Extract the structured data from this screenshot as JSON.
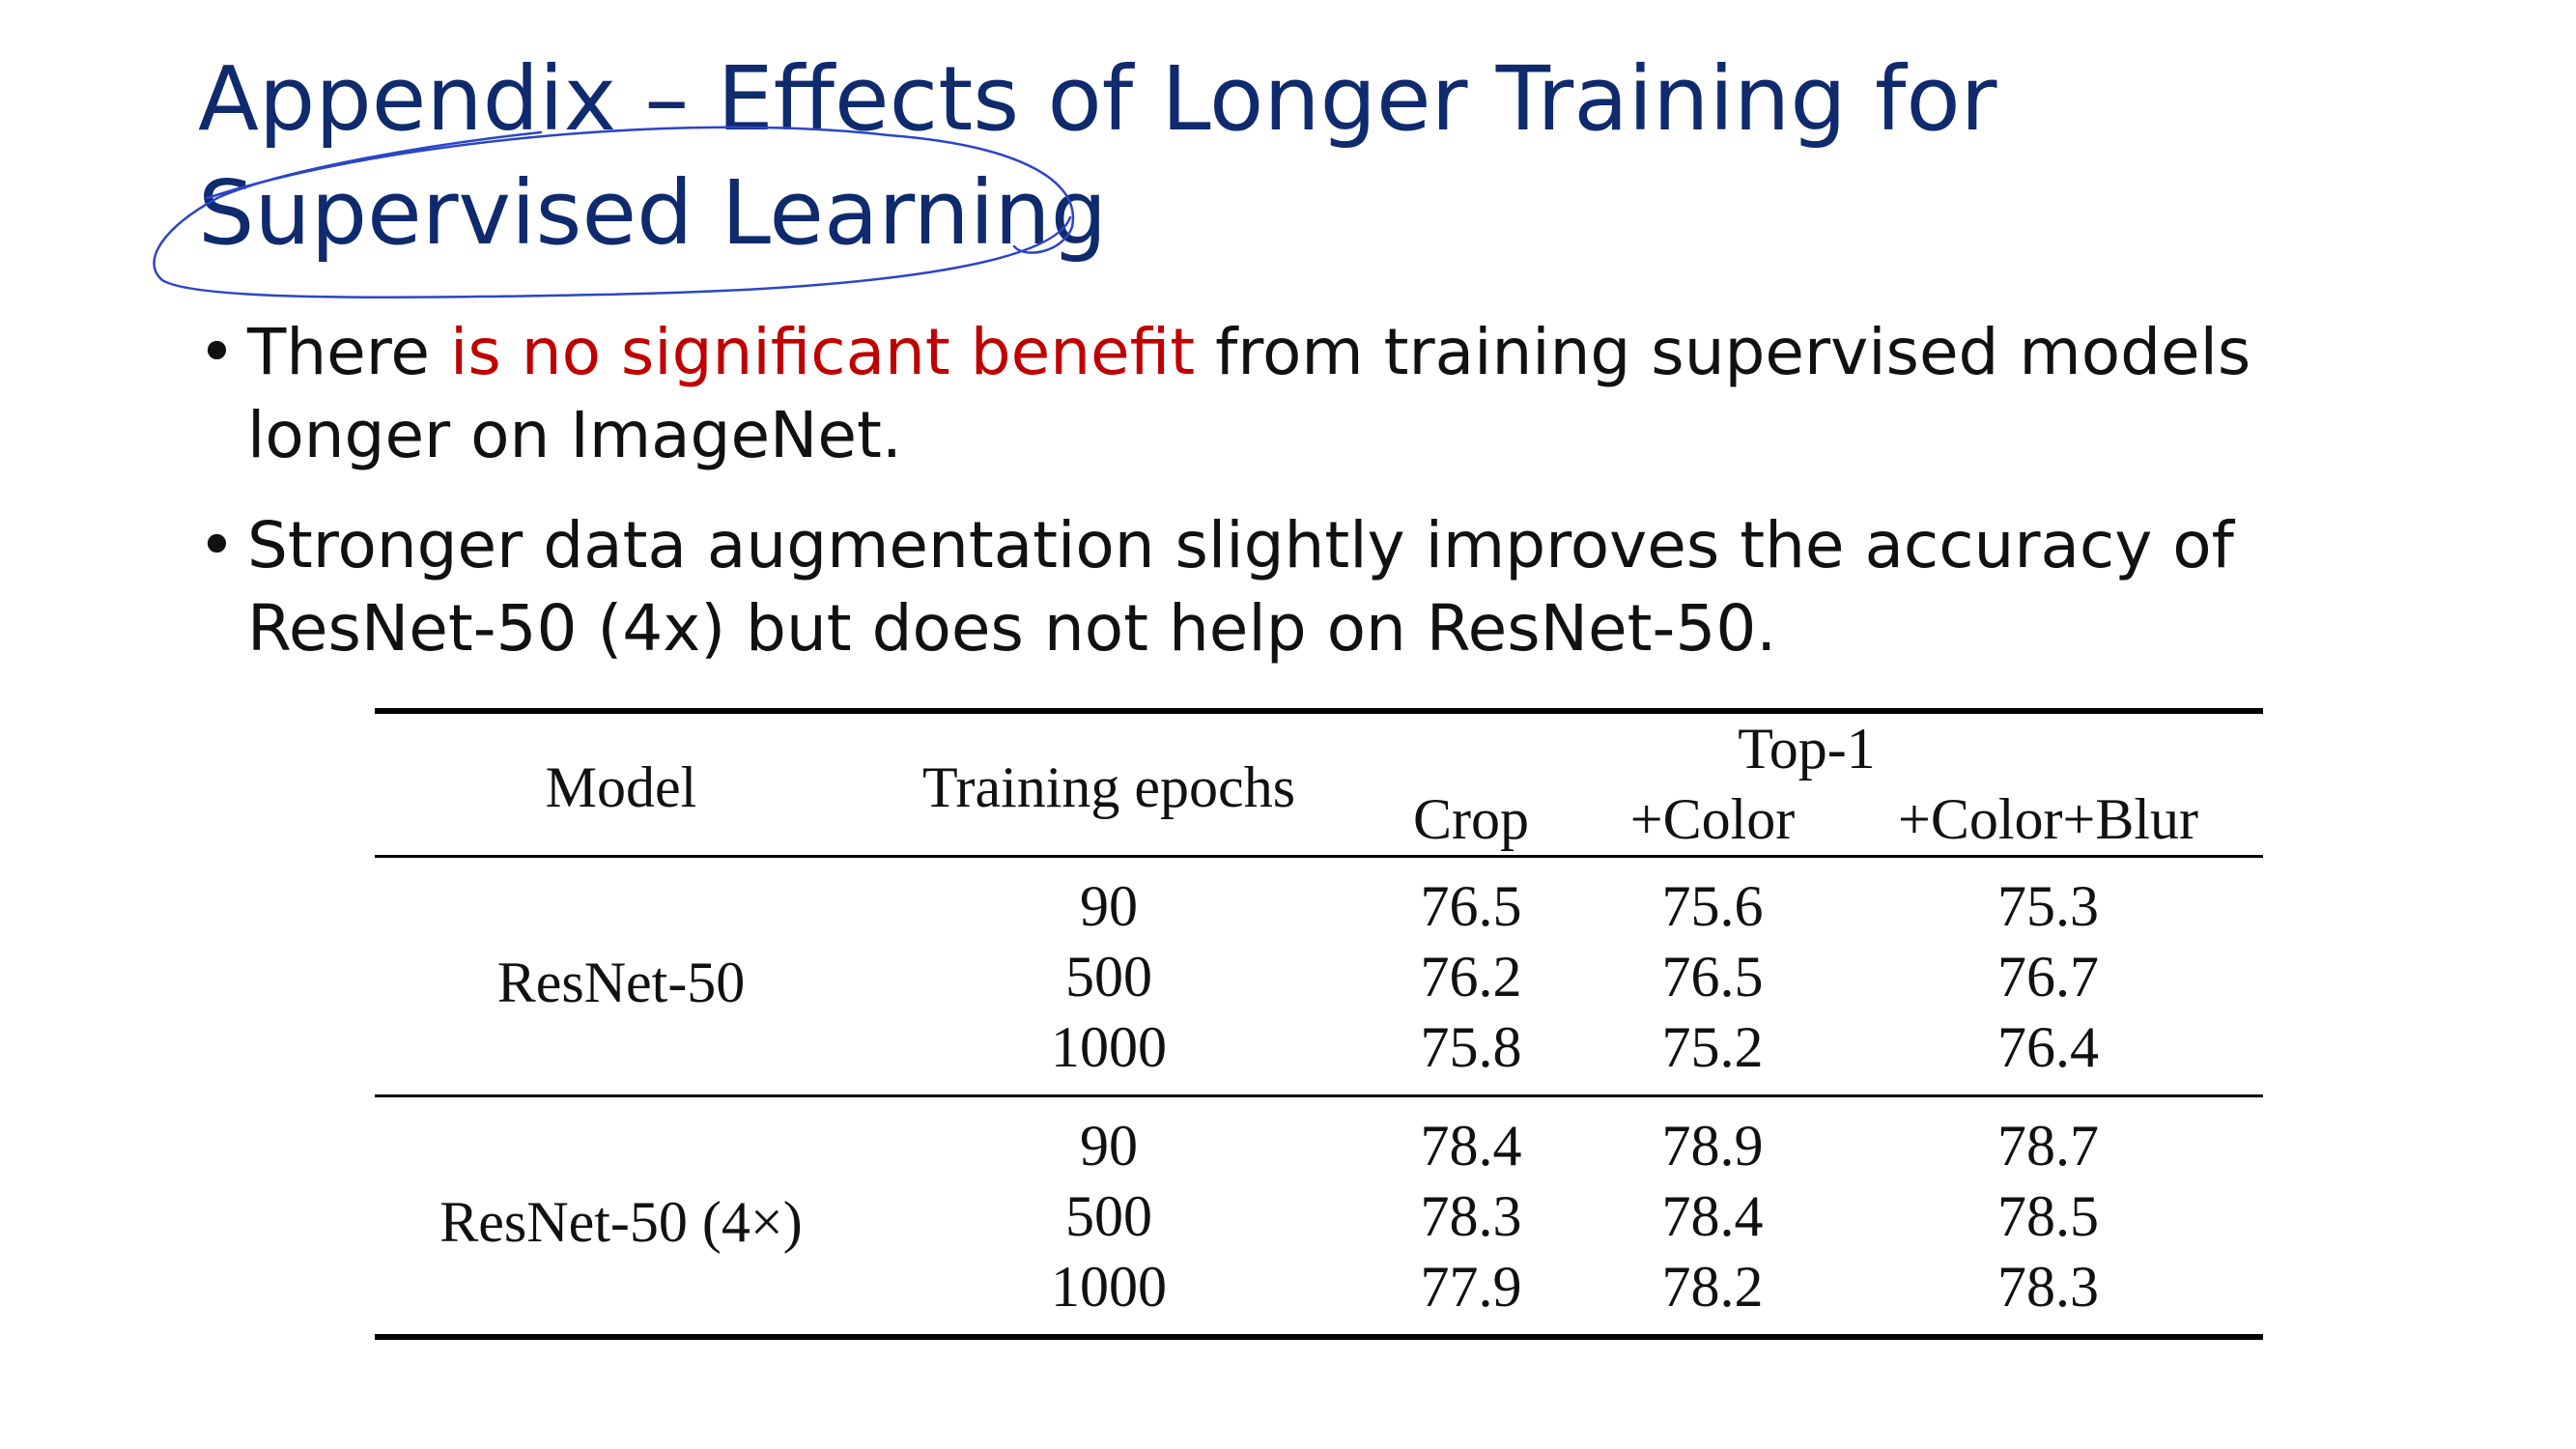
{
  "slide": {
    "title_line1": "Appendix – Effects of Longer Training for",
    "title_line2": "Supervised Learning",
    "bullets": [
      {
        "marker": "•",
        "pre": "There ",
        "highlight": "is no significant benefit",
        "post": " from training supervised models longer on ImageNet."
      },
      {
        "marker": "•",
        "text": "Stronger data augmentation slightly improves the accuracy of ResNet-50 (4x) but does not help on ResNet-50."
      }
    ],
    "colors": {
      "title": "#102a6e",
      "highlight": "#c00000",
      "scribble": "#2b45c8"
    }
  },
  "table": {
    "headers": {
      "model": "Model",
      "epochs": "Training epochs",
      "group": "Top-1",
      "crop": "Crop",
      "color": "+Color",
      "blur": "+Color+Blur"
    },
    "groups": [
      {
        "model": "ResNet-50",
        "rows": [
          {
            "epochs": "90",
            "crop": "76.5",
            "color": "75.6",
            "blur": "75.3"
          },
          {
            "epochs": "500",
            "crop": "76.2",
            "color": "76.5",
            "blur": "76.7"
          },
          {
            "epochs": "1000",
            "crop": "75.8",
            "color": "75.2",
            "blur": "76.4"
          }
        ]
      },
      {
        "model": "ResNet-50 (4×)",
        "rows": [
          {
            "epochs": "90",
            "crop": "78.4",
            "color": "78.9",
            "blur": "78.7"
          },
          {
            "epochs": "500",
            "crop": "78.3",
            "color": "78.4",
            "blur": "78.5"
          },
          {
            "epochs": "1000",
            "crop": "77.9",
            "color": "78.2",
            "blur": "78.3"
          }
        ]
      }
    ]
  }
}
